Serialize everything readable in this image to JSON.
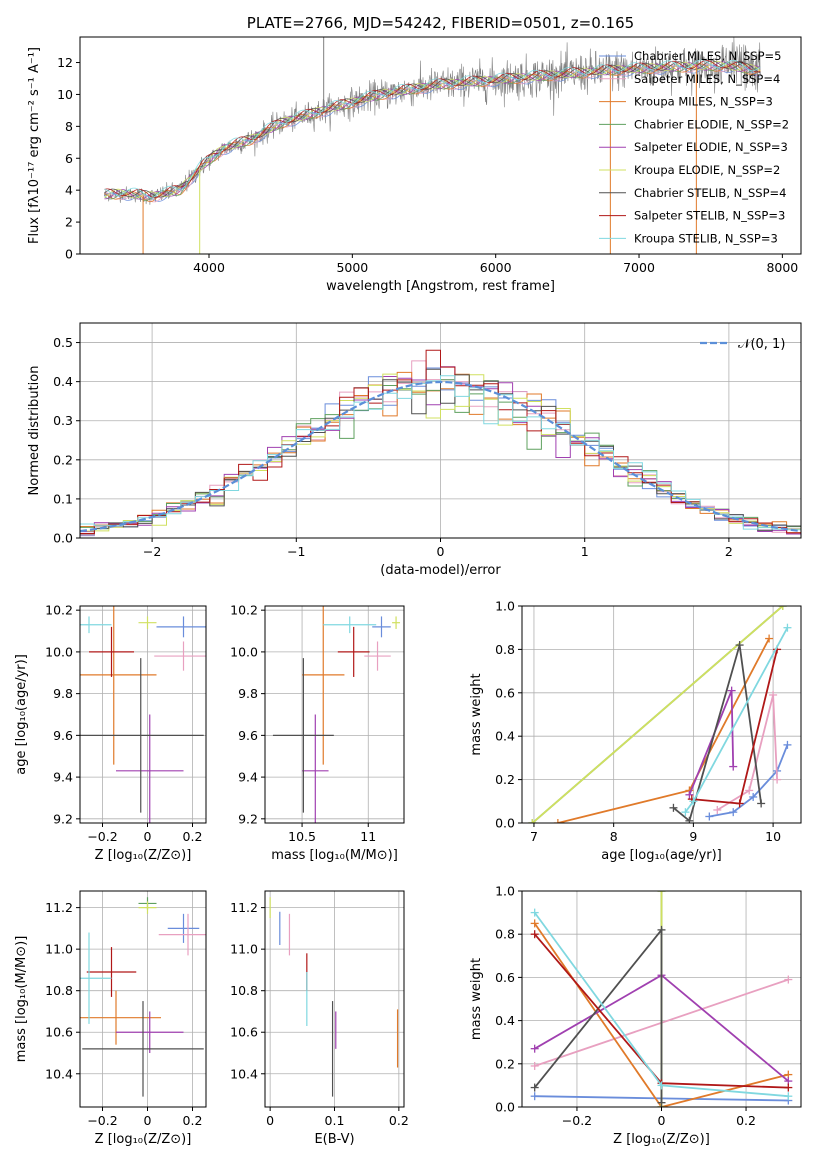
{
  "chart_data": [
    {
      "id": "spectrum",
      "type": "line",
      "title": "PLATE=2766, MJD=54242, FIBERID=0501, z=0.165",
      "xlabel": "wavelength [Angstrom, rest frame]",
      "ylabel": "Flux [fλ10⁻¹⁷ erg cm⁻² s⁻¹ A⁻¹]",
      "xlim": [
        3100,
        8130
      ],
      "ylim": [
        0,
        13.6
      ],
      "xticks": [
        4000,
        5000,
        6000,
        7000,
        8000
      ],
      "yticks": [
        0,
        2,
        4,
        6,
        8,
        10,
        12
      ],
      "continuum": [
        [
          3270,
          3.7
        ],
        [
          3400,
          3.8
        ],
        [
          3600,
          3.6
        ],
        [
          3800,
          4.0
        ],
        [
          3950,
          5.5
        ],
        [
          4100,
          6.6
        ],
        [
          4300,
          7.2
        ],
        [
          4500,
          8.2
        ],
        [
          4800,
          9.0
        ],
        [
          5200,
          10.0
        ],
        [
          5600,
          10.6
        ],
        [
          6000,
          10.9
        ],
        [
          6400,
          11.2
        ],
        [
          6800,
          11.5
        ],
        [
          7200,
          11.7
        ],
        [
          7600,
          11.8
        ],
        [
          7850,
          11.5
        ]
      ],
      "legend_loc": "upper right",
      "series": [
        {
          "name": "Chabrier MILES, N_SSP=5",
          "color": "#6a8ddb"
        },
        {
          "name": "Salpeter MILES, N_SSP=4",
          "color": "#e8a0c0"
        },
        {
          "name": "Kroupa MILES, N_SSP=3",
          "color": "#e07a2a"
        },
        {
          "name": "Chabrier ELODIE, N_SSP=2",
          "color": "#5fa05f"
        },
        {
          "name": "Salpeter ELODIE, N_SSP=3",
          "color": "#a040b0"
        },
        {
          "name": "Kroupa ELODIE, N_SSP=2",
          "color": "#d0e060"
        },
        {
          "name": "Chabrier STELIB, N_SSP=4",
          "color": "#505050"
        },
        {
          "name": "Salpeter STELIB, N_SSP=3",
          "color": "#b01818"
        },
        {
          "name": "Kroupa STELIB, N_SSP=3",
          "color": "#80d8e0"
        }
      ],
      "data_color": "#808080"
    },
    {
      "id": "residuals",
      "type": "step",
      "xlabel": "(data-model)/error",
      "ylabel": "Normed distribution",
      "xlim": [
        -2.5,
        2.5
      ],
      "ylim": [
        0,
        0.55
      ],
      "xticks": [
        -2,
        -1,
        0,
        1,
        2
      ],
      "yticks": [
        0.0,
        0.1,
        0.2,
        0.3,
        0.4,
        0.5
      ],
      "bin_width": 0.1,
      "legend": "𝒩(0, 1)",
      "legend_loc": "upper right",
      "gaussian": {
        "mean": 0,
        "sigma": 1,
        "color": "#5b8fd8"
      },
      "grid": true
    },
    {
      "id": "age_vs_Z",
      "type": "errorbar",
      "xlabel": "Z [log₁₀(Z/Z⊙)]",
      "ylabel": "age  [log₁₀(age/yr)]",
      "xlim": [
        -0.3,
        0.26
      ],
      "ylim": [
        9.18,
        10.22
      ],
      "xticks": [
        -0.2,
        0.0,
        0.2
      ],
      "yticks": [
        9.2,
        9.4,
        9.6,
        9.8,
        10.0,
        10.2
      ],
      "grid": true,
      "points": [
        {
          "x": 0.16,
          "y": 10.12,
          "xe": 0.12,
          "ye": 0.05,
          "color": "#6a8ddb"
        },
        {
          "x": 0.16,
          "y": 9.98,
          "xe": 0.13,
          "ye": 0.07,
          "color": "#e8a0c0"
        },
        {
          "x": -0.15,
          "y": 9.89,
          "xe": 0.19,
          "ye": 0.43,
          "color": "#e07a2a"
        },
        {
          "x": 0.0,
          "y": 10.14,
          "xe": 0.04,
          "ye": 0.03,
          "color": "#d0e060"
        },
        {
          "x": 0.01,
          "y": 9.43,
          "xe": 0.15,
          "ye": 0.27,
          "color": "#a040b0"
        },
        {
          "x": -0.03,
          "y": 9.6,
          "xe": 0.28,
          "ye": 0.37,
          "color": "#505050"
        },
        {
          "x": -0.16,
          "y": 10.0,
          "xe": 0.1,
          "ye": 0.12,
          "color": "#b01818"
        },
        {
          "x": -0.26,
          "y": 10.13,
          "xe": 0.1,
          "ye": 0.04,
          "color": "#80d8e0"
        }
      ]
    },
    {
      "id": "age_vs_mass",
      "type": "errorbar",
      "xlabel": "mass [log₁₀(M/M⊙)]",
      "ylabel": "",
      "xlim": [
        10.22,
        11.27
      ],
      "ylim": [
        9.18,
        10.22
      ],
      "xticks": [
        10.5,
        11.0
      ],
      "yticks": [
        9.2,
        9.4,
        9.6,
        9.8,
        10.0,
        10.2
      ],
      "grid": true,
      "points": [
        {
          "x": 11.1,
          "y": 10.12,
          "xe": 0.07,
          "ye": 0.05,
          "color": "#6a8ddb"
        },
        {
          "x": 11.07,
          "y": 9.98,
          "xe": 0.1,
          "ye": 0.07,
          "color": "#e8a0c0"
        },
        {
          "x": 10.66,
          "y": 9.89,
          "xe": 0.16,
          "ye": 0.43,
          "color": "#e07a2a"
        },
        {
          "x": 11.21,
          "y": 10.14,
          "xe": 0.03,
          "ye": 0.03,
          "color": "#d0e060"
        },
        {
          "x": 10.6,
          "y": 9.43,
          "xe": 0.1,
          "ye": 0.27,
          "color": "#a040b0"
        },
        {
          "x": 10.51,
          "y": 9.6,
          "xe": 0.23,
          "ye": 0.37,
          "color": "#505050"
        },
        {
          "x": 10.89,
          "y": 10.0,
          "xe": 0.12,
          "ye": 0.12,
          "color": "#b01818"
        },
        {
          "x": 10.86,
          "y": 10.13,
          "xe": 0.2,
          "ye": 0.04,
          "color": "#80d8e0"
        }
      ]
    },
    {
      "id": "massweight_vs_age",
      "type": "line",
      "xlabel": "age  [log₁₀(age/yr)]",
      "ylabel": "mass weight",
      "xlim": [
        6.85,
        10.35
      ],
      "ylim": [
        0,
        1.0
      ],
      "xticks": [
        7,
        8,
        9,
        10
      ],
      "yticks": [
        0.0,
        0.2,
        0.4,
        0.6,
        0.8,
        1.0
      ],
      "grid": true,
      "series": [
        {
          "color": "#6a8ddb",
          "points": [
            [
              9.2,
              0.03
            ],
            [
              9.5,
              0.05
            ],
            [
              9.75,
              0.12
            ],
            [
              10.05,
              0.24
            ],
            [
              10.18,
              0.36
            ]
          ]
        },
        {
          "color": "#e8a0c0",
          "points": [
            [
              9.3,
              0.06
            ],
            [
              9.7,
              0.15
            ],
            [
              10.0,
              0.59
            ],
            [
              10.05,
              0.2
            ]
          ]
        },
        {
          "color": "#e07a2a",
          "points": [
            [
              7.3,
              0.0
            ],
            [
              8.95,
              0.15
            ],
            [
              9.95,
              0.85
            ]
          ]
        },
        {
          "color": "#5fa05f",
          "points": [
            [
              6.98,
              0.0
            ],
            [
              10.12,
              1.0
            ]
          ]
        },
        {
          "color": "#a040b0",
          "points": [
            [
              8.95,
              0.13
            ],
            [
              9.48,
              0.61
            ],
            [
              9.5,
              0.26
            ]
          ]
        },
        {
          "color": "#d0e060",
          "points": [
            [
              6.98,
              0.0
            ],
            [
              10.12,
              1.0
            ]
          ]
        },
        {
          "color": "#505050",
          "points": [
            [
              8.75,
              0.07
            ],
            [
              8.95,
              0.01
            ],
            [
              9.58,
              0.82
            ],
            [
              9.85,
              0.09
            ]
          ]
        },
        {
          "color": "#b01818",
          "points": [
            [
              8.98,
              0.11
            ],
            [
              9.58,
              0.09
            ],
            [
              10.05,
              0.8
            ]
          ]
        },
        {
          "color": "#80d8e0",
          "points": [
            [
              8.9,
              0.05
            ],
            [
              9.0,
              0.1
            ],
            [
              10.18,
              0.9
            ]
          ]
        }
      ]
    },
    {
      "id": "mass_vs_Z",
      "type": "errorbar",
      "xlabel": "Z [log₁₀(Z/Z⊙)]",
      "ylabel": "mass [log₁₀(M/M⊙)]",
      "xlim": [
        -0.3,
        0.26
      ],
      "ylim": [
        10.24,
        11.28
      ],
      "xticks": [
        -0.2,
        0.0,
        0.2
      ],
      "yticks": [
        10.4,
        10.6,
        10.8,
        11.0,
        11.2
      ],
      "grid": true,
      "points": [
        {
          "x": 0.16,
          "y": 11.1,
          "xe": 0.07,
          "ye": 0.07,
          "color": "#6a8ddb"
        },
        {
          "x": 0.18,
          "y": 11.07,
          "xe": 0.13,
          "ye": 0.1,
          "color": "#e8a0c0"
        },
        {
          "x": -0.14,
          "y": 10.67,
          "xe": 0.2,
          "ye": 0.13,
          "color": "#e07a2a"
        },
        {
          "x": 0.0,
          "y": 11.22,
          "xe": 0.04,
          "ye": 0.03,
          "color": "#5fa05f"
        },
        {
          "x": 0.0,
          "y": 11.2,
          "xe": 0.04,
          "ye": 0.03,
          "color": "#d0e060"
        },
        {
          "x": 0.01,
          "y": 10.6,
          "xe": 0.15,
          "ye": 0.1,
          "color": "#a040b0"
        },
        {
          "x": -0.02,
          "y": 10.52,
          "xe": 0.27,
          "ye": 0.23,
          "color": "#505050"
        },
        {
          "x": -0.16,
          "y": 10.89,
          "xe": 0.11,
          "ye": 0.12,
          "color": "#b01818"
        },
        {
          "x": -0.26,
          "y": 10.86,
          "xe": 0.1,
          "ye": 0.22,
          "color": "#80d8e0"
        }
      ]
    },
    {
      "id": "mass_vs_EBV",
      "type": "errorbar",
      "xlabel": "E(B-V)",
      "ylabel": "",
      "xlim": [
        -0.008,
        0.208
      ],
      "ylim": [
        10.24,
        11.28
      ],
      "xticks": [
        0.0,
        0.1,
        0.2
      ],
      "yticks": [
        10.4,
        10.6,
        10.8,
        11.0,
        11.2
      ],
      "grid": true,
      "points": [
        {
          "x": 0.015,
          "y": 11.1,
          "xe": 0.0,
          "ye": 0.08,
          "color": "#6a8ddb"
        },
        {
          "x": 0.03,
          "y": 11.07,
          "xe": 0.0,
          "ye": 0.1,
          "color": "#e8a0c0"
        },
        {
          "x": 0.198,
          "y": 10.57,
          "xe": 0.0,
          "ye": 0.14,
          "color": "#e07a2a"
        },
        {
          "x": 0.0,
          "y": 11.2,
          "xe": 0.0,
          "ye": 0.05,
          "color": "#d0e060"
        },
        {
          "x": 0.102,
          "y": 10.61,
          "xe": 0.0,
          "ye": 0.09,
          "color": "#a040b0"
        },
        {
          "x": 0.097,
          "y": 10.52,
          "xe": 0.0,
          "ye": 0.23,
          "color": "#505050"
        },
        {
          "x": 0.057,
          "y": 10.89,
          "xe": 0.0,
          "ye": 0.09,
          "color": "#b01818"
        },
        {
          "x": 0.057,
          "y": 10.76,
          "xe": 0.0,
          "ye": 0.13,
          "color": "#80d8e0"
        }
      ]
    },
    {
      "id": "massweight_vs_Z",
      "type": "line",
      "xlabel": "Z [log₁₀(Z/Z⊙)]",
      "ylabel": "mass weight",
      "xlim": [
        -0.33,
        0.33
      ],
      "ylim": [
        0,
        1.0
      ],
      "xticks": [
        -0.2,
        0.0,
        0.2
      ],
      "yticks": [
        0.0,
        0.2,
        0.4,
        0.6,
        0.8,
        1.0
      ],
      "grid": true,
      "series": [
        {
          "color": "#6a8ddb",
          "points": [
            [
              -0.3,
              0.05
            ],
            [
              0.0,
              0.04
            ],
            [
              0.3,
              0.03
            ]
          ]
        },
        {
          "color": "#e8a0c0",
          "points": [
            [
              -0.3,
              0.19
            ],
            [
              0.3,
              0.59
            ]
          ]
        },
        {
          "color": "#e07a2a",
          "points": [
            [
              -0.3,
              0.85
            ],
            [
              0.0,
              0.0
            ],
            [
              0.3,
              0.15
            ]
          ]
        },
        {
          "color": "#5fa05f",
          "points": [
            [
              0.0,
              0.0
            ],
            [
              0.0,
              1.0
            ]
          ]
        },
        {
          "color": "#a040b0",
          "points": [
            [
              -0.3,
              0.27
            ],
            [
              0.0,
              0.61
            ],
            [
              0.3,
              0.12
            ]
          ]
        },
        {
          "color": "#d0e060",
          "points": [
            [
              0.0,
              0.0
            ],
            [
              0.0,
              1.0
            ]
          ]
        },
        {
          "color": "#505050",
          "points": [
            [
              -0.3,
              0.09
            ],
            [
              0.0,
              0.82
            ],
            [
              0.0,
              0.02
            ]
          ]
        },
        {
          "color": "#b01818",
          "points": [
            [
              -0.3,
              0.8
            ],
            [
              0.0,
              0.11
            ],
            [
              0.3,
              0.09
            ]
          ]
        },
        {
          "color": "#80d8e0",
          "points": [
            [
              -0.3,
              0.9
            ],
            [
              0.0,
              0.1
            ],
            [
              0.3,
              0.05
            ]
          ]
        }
      ]
    }
  ]
}
